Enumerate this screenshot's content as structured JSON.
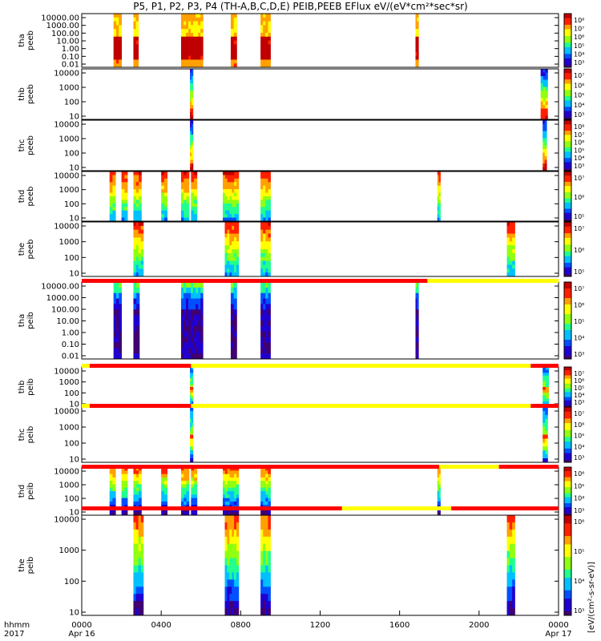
{
  "title": "P5, P1, P2, P3, P4 (TH-A,B,C,D,E) PEIB,PEEB EFlux eV/(eV*cm²*sec*sr)",
  "colorbar_unit_label": "[eV/(cm²-s-sr-eV)]",
  "colors": {
    "bar_red": "#ff0000",
    "bar_yellow": "#ffff00",
    "colormap": [
      "#400070",
      "#2000d0",
      "#0050ff",
      "#00c0ff",
      "#20ff90",
      "#90ff10",
      "#ffff00",
      "#ffa000",
      "#ff2000",
      "#c00000"
    ]
  },
  "chart_data": {
    "type": "heatmap",
    "x_axis": {
      "label_top": "hhmm",
      "label_bottom": "2017",
      "range_hours": [
        0,
        24
      ],
      "ticks": [
        {
          "hour": 0,
          "label": "0000",
          "sub": "Apr 16"
        },
        {
          "hour": 4,
          "label": "0400",
          "sub": ""
        },
        {
          "hour": 8,
          "label": "0800",
          "sub": ""
        },
        {
          "hour": 12,
          "label": "1200",
          "sub": ""
        },
        {
          "hour": 16,
          "label": "1600",
          "sub": ""
        },
        {
          "hour": 20,
          "label": "2000",
          "sub": ""
        },
        {
          "hour": 24,
          "label": "0000",
          "sub": "Apr 17"
        }
      ]
    },
    "panels": [
      {
        "name": "tha peeb",
        "l1": "tha",
        "l2": "peeb",
        "yticks": [
          "10000.00",
          "1000.00",
          "100.00",
          "10.00",
          "1.00",
          "0.10",
          "0.01"
        ],
        "cbar_ticks": [
          "10⁸",
          "10⁷",
          "10⁶",
          "10⁵",
          "10⁴",
          "10³"
        ],
        "style": "tha_e",
        "intervals": [
          [
            1.6,
            2.0
          ],
          [
            2.6,
            2.85
          ],
          [
            5.0,
            6.1
          ],
          [
            7.5,
            7.8
          ],
          [
            9.0,
            9.5
          ],
          [
            16.8,
            16.95
          ]
        ]
      },
      {
        "name": "thb peeb",
        "l1": "thb",
        "l2": "peeb",
        "yticks": [
          "10000",
          "1000",
          "100",
          "10"
        ],
        "cbar_ticks": [
          "10⁷",
          "10⁶",
          "10⁵",
          "10⁴",
          "10³"
        ],
        "style": "thbc_e",
        "intervals": [
          [
            5.45,
            5.6
          ],
          [
            23.1,
            23.45
          ]
        ]
      },
      {
        "name": "thc peeb",
        "l1": "thc",
        "l2": "peeb",
        "yticks": [
          "10000",
          "1000",
          "100",
          "10"
        ],
        "cbar_ticks": [
          "10⁸",
          "10⁷",
          "10⁶",
          "10⁵",
          "10⁴",
          "10³"
        ],
        "style": "thbc_e",
        "intervals": [
          [
            5.45,
            5.6
          ],
          [
            23.2,
            23.4
          ]
        ]
      },
      {
        "name": "thd peeb",
        "l1": "thd",
        "l2": "peeb",
        "yticks": [
          "10000",
          "1000",
          "100",
          "10"
        ],
        "cbar_ticks": [
          "10⁷",
          "10⁶",
          "10⁵"
        ],
        "style": "thde_e",
        "intervals": [
          [
            1.4,
            1.7
          ],
          [
            2.0,
            2.3
          ],
          [
            2.6,
            3.0
          ],
          [
            4.0,
            4.3
          ],
          [
            5.0,
            5.4
          ],
          [
            5.5,
            5.8
          ],
          [
            7.1,
            7.9
          ],
          [
            9.0,
            9.5
          ],
          [
            17.9,
            18.05
          ]
        ]
      },
      {
        "name": "the peeb",
        "l1": "the",
        "l2": "peeb",
        "yticks": [
          "10000",
          "1000",
          "100",
          "10"
        ],
        "cbar_ticks": [
          "10⁷",
          "10⁶",
          "10⁵"
        ],
        "style": "thde_e",
        "intervals": [
          [
            2.6,
            3.1
          ],
          [
            7.2,
            7.9
          ],
          [
            9.0,
            9.5
          ],
          [
            21.4,
            21.8
          ]
        ]
      },
      {
        "name": "tha peib",
        "l1": "tha",
        "l2": "peib",
        "yticks": [
          "10000.00",
          "1000.00",
          "100.00",
          "10.00",
          "1.00",
          "0.10",
          "0.01"
        ],
        "cbar_ticks": [
          "10⁷",
          "10⁶",
          "10⁵",
          "10⁴",
          "10³"
        ],
        "style": "tha_i",
        "intervals": [
          [
            1.6,
            2.0
          ],
          [
            2.6,
            2.9
          ],
          [
            5.0,
            6.1
          ],
          [
            7.5,
            7.8
          ],
          [
            9.0,
            9.5
          ],
          [
            16.8,
            16.95
          ]
        ]
      },
      {
        "name": "thb peib",
        "l1": "thb",
        "l2": "peib",
        "yticks": [
          "10000",
          "1000",
          "100",
          "10"
        ],
        "cbar_ticks": [
          "10⁷",
          "10⁶",
          "10⁵",
          "10⁴",
          "10³"
        ],
        "style": "thbc_i",
        "intervals": [
          [
            5.45,
            5.6
          ],
          [
            23.2,
            23.5
          ]
        ]
      },
      {
        "name": "thc peib",
        "l1": "thc",
        "l2": "peib",
        "yticks": [
          "10000",
          "1000",
          "100",
          "10"
        ],
        "cbar_ticks": [
          "10⁷",
          "10⁶",
          "10⁵",
          "10⁴",
          "10³"
        ],
        "style": "thbc_i",
        "intervals": [
          [
            5.45,
            5.6
          ],
          [
            23.2,
            23.45
          ]
        ]
      },
      {
        "name": "thd peib",
        "l1": "thd",
        "l2": "peib",
        "yticks": [
          "10000",
          "1000",
          "100",
          "10"
        ],
        "cbar_ticks": [
          "10⁶",
          "10⁵",
          "10⁴",
          "10³"
        ],
        "style": "thde_i",
        "intervals": [
          [
            1.4,
            1.7
          ],
          [
            2.0,
            2.3
          ],
          [
            2.6,
            3.0
          ],
          [
            4.0,
            4.3
          ],
          [
            5.0,
            5.4
          ],
          [
            5.5,
            5.8
          ],
          [
            7.1,
            7.9
          ],
          [
            9.0,
            9.5
          ],
          [
            17.9,
            18.05
          ]
        ]
      },
      {
        "name": "the peib",
        "l1": "the",
        "l2": "peib",
        "yticks": [
          "10000",
          "1000",
          "100",
          "10"
        ],
        "cbar_ticks": [
          "10⁶",
          "10⁵",
          "10⁴",
          "10³"
        ],
        "style": "thde_i",
        "intervals": [
          [
            2.6,
            3.1
          ],
          [
            7.2,
            7.9
          ],
          [
            9.0,
            9.5
          ],
          [
            21.4,
            21.8
          ]
        ]
      }
    ],
    "mode_bars": [
      {
        "after_panel": 4,
        "segments": [
          [
            "red",
            0,
            17.4
          ],
          [
            "yellow",
            17.4,
            24
          ]
        ]
      },
      {
        "after_panel": 5,
        "segments": [
          [
            "yellow",
            0,
            0.4
          ],
          [
            "red",
            0.4,
            5.5
          ],
          [
            "yellow",
            5.5,
            22.6
          ],
          [
            "red",
            22.6,
            24
          ]
        ]
      },
      {
        "after_panel": 6,
        "segments": [
          [
            "yellow",
            0,
            0.4
          ],
          [
            "red",
            0.4,
            5.5
          ],
          [
            "yellow",
            5.5,
            22.6
          ],
          [
            "red",
            22.6,
            24
          ]
        ]
      },
      {
        "after_panel": 7,
        "segments": [
          [
            "red",
            0,
            18.0
          ],
          [
            "yellow",
            18.0,
            21.0
          ],
          [
            "red",
            21.0,
            24
          ]
        ]
      },
      {
        "after_panel": 8,
        "segments": [
          [
            "red",
            0,
            13.1
          ],
          [
            "yellow",
            13.1,
            18.6
          ],
          [
            "red",
            18.6,
            24
          ]
        ]
      }
    ]
  }
}
